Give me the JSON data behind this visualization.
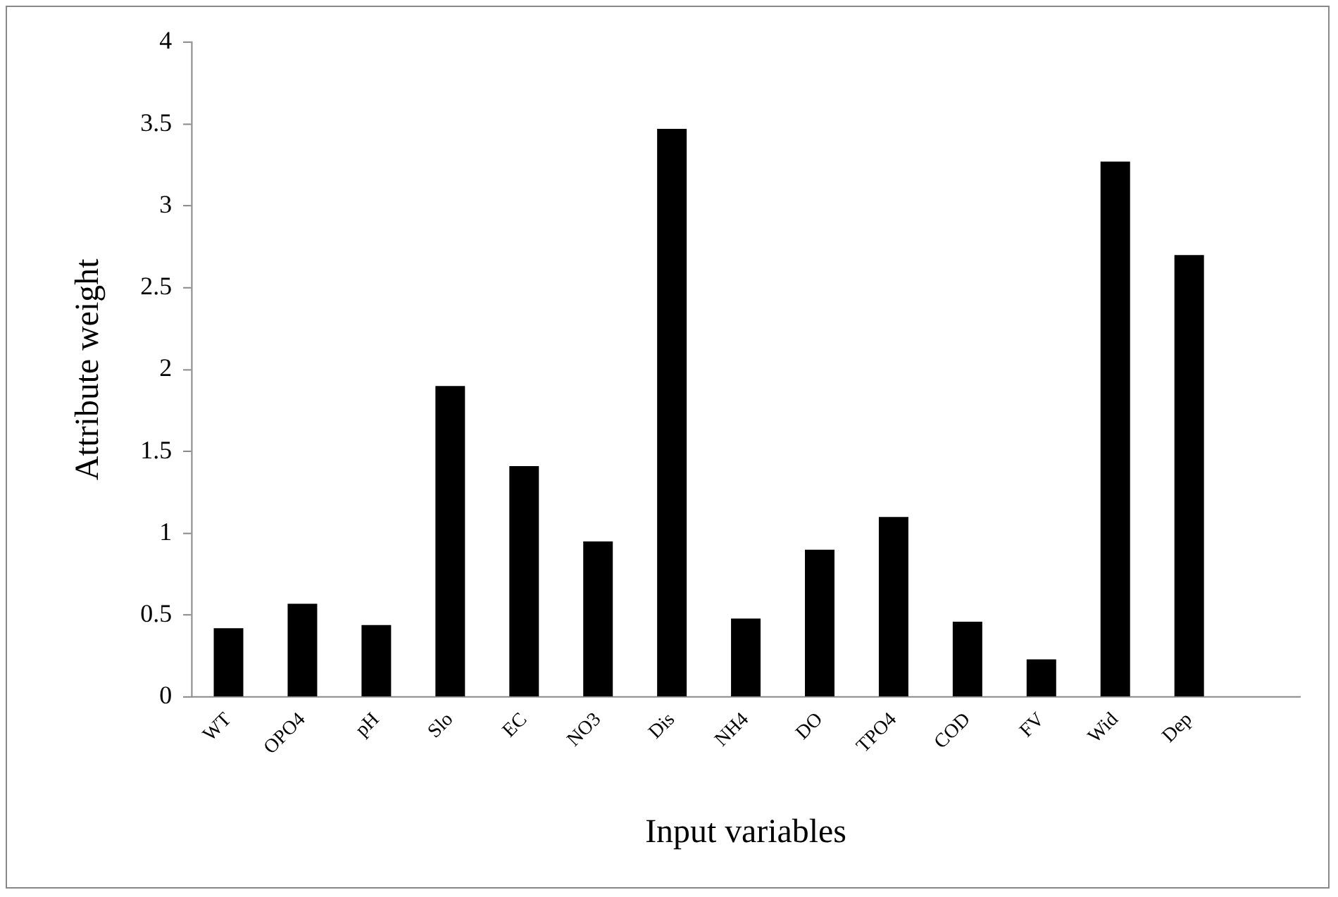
{
  "chart_data": {
    "type": "bar",
    "xlabel": "Input variables",
    "ylabel": "Attribute weight",
    "categories": [
      "WT",
      "OPO4",
      "pH",
      "Slo",
      "EC",
      "NO3",
      "Dis",
      "NH4",
      "DO",
      "TPO4",
      "COD",
      "FV",
      "Wid",
      "Dep",
      null
    ],
    "values": [
      0.42,
      0.57,
      0.44,
      1.9,
      1.41,
      0.95,
      3.47,
      0.48,
      0.9,
      1.1,
      0.46,
      0.23,
      3.27,
      2.7,
      null
    ],
    "color": "#000000",
    "ylim": [
      0,
      4
    ],
    "yticks": [
      0,
      0.5,
      1,
      1.5,
      2,
      2.5,
      3,
      3.5,
      4
    ],
    "grid": false,
    "legend": false
  }
}
